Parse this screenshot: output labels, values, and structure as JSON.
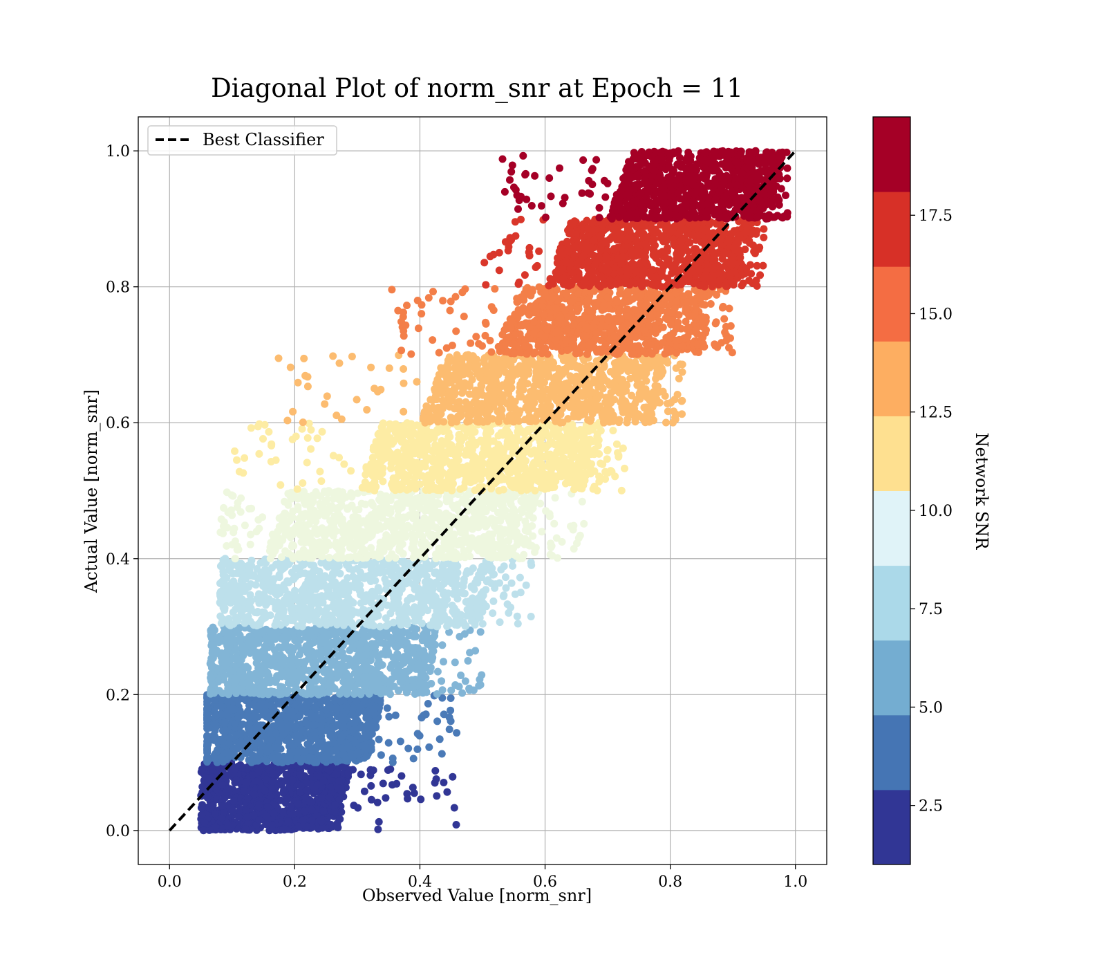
{
  "chart_data": {
    "type": "scatter",
    "title": "Diagonal Plot of norm_snr at Epoch = 11",
    "xlabel": "Observed Value [norm_snr]",
    "ylabel": "Actual Value [norm_snr]",
    "xlim": [
      -0.05,
      1.05
    ],
    "ylim": [
      -0.05,
      1.05
    ],
    "xticks": [
      0.0,
      0.2,
      0.4,
      0.6,
      0.8,
      1.0
    ],
    "yticks": [
      0.0,
      0.2,
      0.4,
      0.6,
      0.8,
      1.0
    ],
    "x_tick_labels": [
      "0.0",
      "0.2",
      "0.4",
      "0.6",
      "0.8",
      "1.0"
    ],
    "y_tick_labels": [
      "0.0",
      "0.2",
      "0.4",
      "0.6",
      "0.8",
      "1.0"
    ],
    "grid": true,
    "legend": {
      "position": "top-left",
      "entries": [
        "Best Classifier"
      ]
    },
    "reference_line": {
      "name": "Best Classifier",
      "style": "dashed",
      "color": "#000000",
      "x": [
        0.0,
        1.0
      ],
      "y": [
        0.0,
        1.0
      ]
    },
    "colorbar": {
      "label": "Network SNR",
      "range": [
        1.0,
        20.0
      ],
      "ticks": [
        2.5,
        5.0,
        7.5,
        10.0,
        12.5,
        15.0,
        17.5
      ],
      "tick_labels": [
        "2.5",
        "5.0",
        "7.5",
        "10.0",
        "12.5",
        "15.0",
        "17.5"
      ],
      "colors": [
        "#313695",
        "#4575b4",
        "#74add1",
        "#abd9e9",
        "#e0f3f8",
        "#fee090",
        "#fdae61",
        "#f46d43",
        "#d73027",
        "#a50026"
      ]
    },
    "bands": [
      {
        "y_range": [
          0.0,
          0.1
        ],
        "color": "#313695",
        "x_core": [
          0.06,
          0.27
        ],
        "x_spread": [
          0.05,
          0.46
        ]
      },
      {
        "y_range": [
          0.1,
          0.2
        ],
        "color": "#4a7ab7",
        "x_core": [
          0.06,
          0.32
        ],
        "x_spread": [
          0.06,
          0.46
        ]
      },
      {
        "y_range": [
          0.2,
          0.3
        ],
        "color": "#82b5d6",
        "x_core": [
          0.07,
          0.41
        ],
        "x_spread": [
          0.065,
          0.5
        ]
      },
      {
        "y_range": [
          0.3,
          0.4
        ],
        "color": "#bde0eb",
        "x_core": [
          0.09,
          0.5
        ],
        "x_spread": [
          0.08,
          0.58
        ]
      },
      {
        "y_range": [
          0.4,
          0.5
        ],
        "color": "#eef7df",
        "x_core": [
          0.15,
          0.57
        ],
        "x_spread": [
          0.08,
          0.67
        ]
      },
      {
        "y_range": [
          0.5,
          0.6
        ],
        "color": "#fdeca4",
        "x_core": [
          0.3,
          0.67
        ],
        "x_spread": [
          0.1,
          0.73
        ]
      },
      {
        "y_range": [
          0.6,
          0.7
        ],
        "color": "#fcbc70",
        "x_core": [
          0.4,
          0.77
        ],
        "x_spread": [
          0.17,
          0.82
        ]
      },
      {
        "y_range": [
          0.7,
          0.8
        ],
        "color": "#f37f49",
        "x_core": [
          0.52,
          0.85
        ],
        "x_spread": [
          0.35,
          0.9
        ]
      },
      {
        "y_range": [
          0.8,
          0.9
        ],
        "color": "#d9362a",
        "x_core": [
          0.6,
          0.91
        ],
        "x_spread": [
          0.5,
          0.95
        ]
      },
      {
        "y_range": [
          0.9,
          1.0
        ],
        "color": "#a50026",
        "x_core": [
          0.7,
          0.96
        ],
        "x_spread": [
          0.53,
          0.99
        ]
      }
    ]
  }
}
